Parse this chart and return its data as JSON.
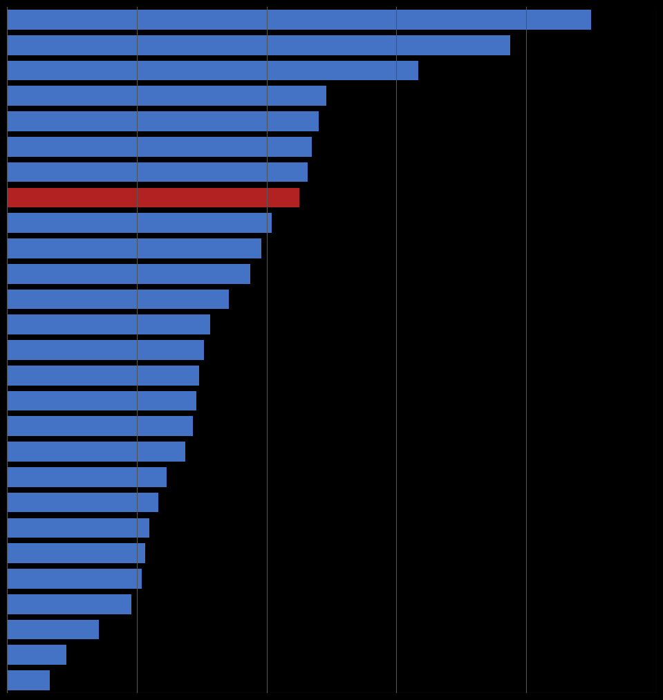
{
  "values": [
    54.0,
    46.5,
    38.0,
    29.5,
    28.8,
    28.2,
    27.8,
    27.0,
    24.5,
    23.5,
    22.5,
    20.5,
    18.8,
    18.2,
    17.8,
    17.5,
    17.2,
    16.5,
    14.8,
    14.0,
    13.2,
    12.8,
    12.5,
    11.5,
    8.5,
    5.5,
    4.0
  ],
  "red_index": 7,
  "bar_color": "#4472c4",
  "red_color": "#b22222",
  "background_color": "#000000",
  "grid_color": "#555555",
  "xlim": [
    0,
    60
  ],
  "xtick_vals": [
    0,
    12,
    24,
    36,
    48,
    60
  ],
  "figsize": [
    9.59,
    10.13
  ],
  "dpi": 100
}
